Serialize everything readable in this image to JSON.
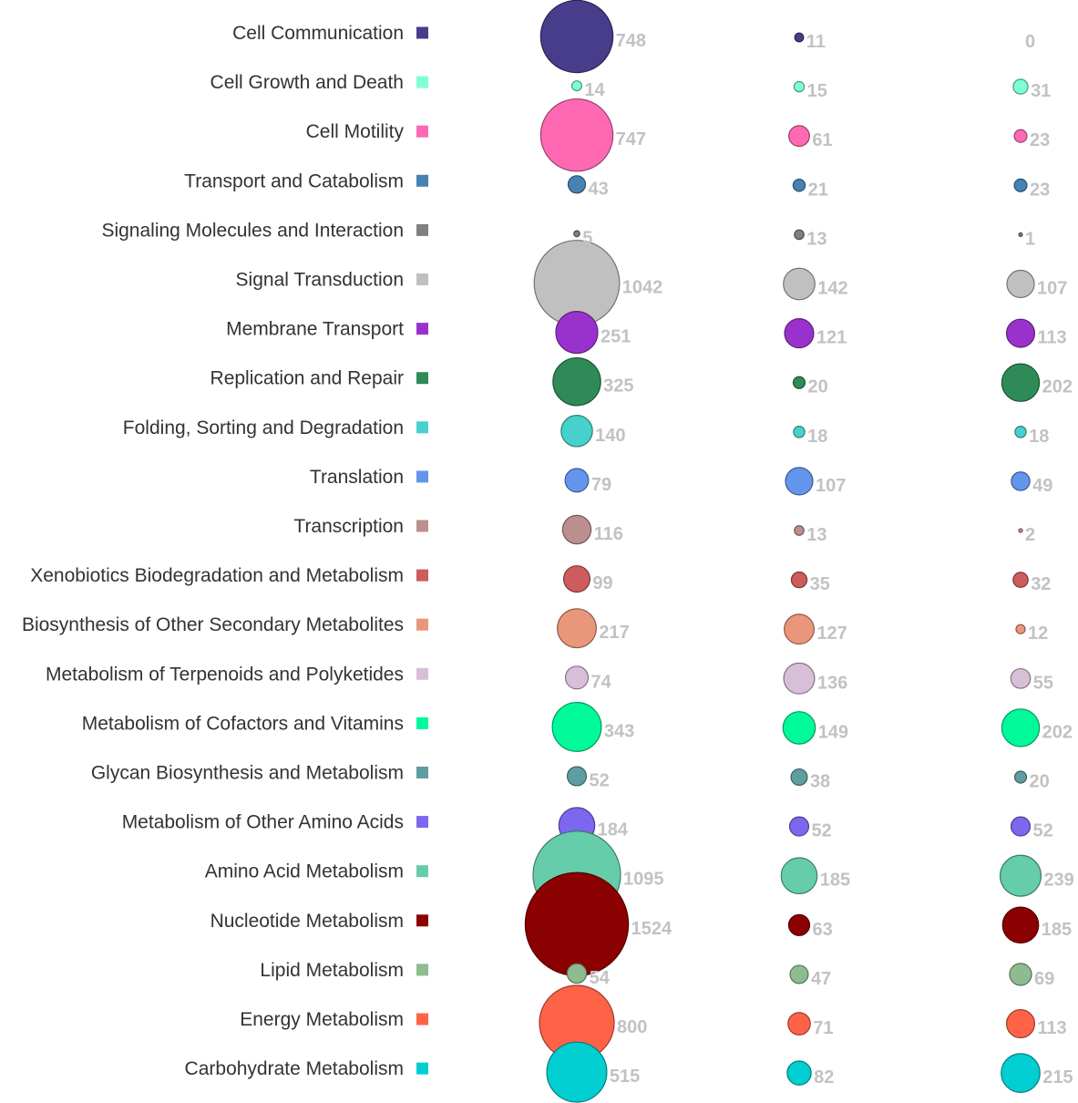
{
  "chart_data": {
    "type": "scatter",
    "title": "",
    "xlabel": "",
    "ylabel": "",
    "grid": false,
    "legend": "left",
    "categories": [
      "Cell Communication",
      "Cell Growth and Death",
      "Cell Motility",
      "Transport and Catabolism",
      "Signaling Molecules and Interaction",
      "Signal Transduction",
      "Membrane Transport",
      "Replication and Repair",
      "Folding, Sorting and Degradation",
      "Translation",
      "Transcription",
      "Xenobiotics Biodegradation and Metabolism",
      "Biosynthesis of Other Secondary Metabolites",
      "Metabolism of Terpenoids and Polyketides",
      "Metabolism of Cofactors and Vitamins",
      "Glycan Biosynthesis and Metabolism",
      "Metabolism of Other Amino Acids",
      "Amino Acid Metabolism",
      "Nucleotide Metabolism",
      "Lipid Metabolism",
      "Energy Metabolism",
      "Carbohydrate Metabolism"
    ],
    "colors": [
      "#483D8B",
      "#7FFFD4",
      "#FF69B4",
      "#4682B4",
      "#808080",
      "#C0C0C0",
      "#9932CC",
      "#2E8B57",
      "#48D1CC",
      "#6495ED",
      "#BC8F8F",
      "#CD5C5C",
      "#E9967A",
      "#D8BFD8",
      "#00FA9A",
      "#5F9EA0",
      "#7B68EE",
      "#66CDAA",
      "#8B0000",
      "#8FBC8F",
      "#FF6347",
      "#00CED1"
    ],
    "series": [
      {
        "values": [
          748,
          14,
          747,
          43,
          5,
          1042,
          251,
          325,
          140,
          79,
          116,
          99,
          217,
          74,
          343,
          52,
          184,
          1095,
          1524,
          54,
          800,
          515
        ]
      },
      {
        "values": [
          11,
          15,
          61,
          21,
          13,
          142,
          121,
          20,
          18,
          107,
          13,
          35,
          127,
          136,
          149,
          38,
          52,
          185,
          63,
          47,
          71,
          82
        ]
      },
      {
        "values": [
          0,
          31,
          23,
          23,
          1,
          107,
          113,
          202,
          18,
          49,
          2,
          32,
          12,
          55,
          202,
          20,
          52,
          239,
          185,
          69,
          113,
          215
        ]
      }
    ]
  }
}
